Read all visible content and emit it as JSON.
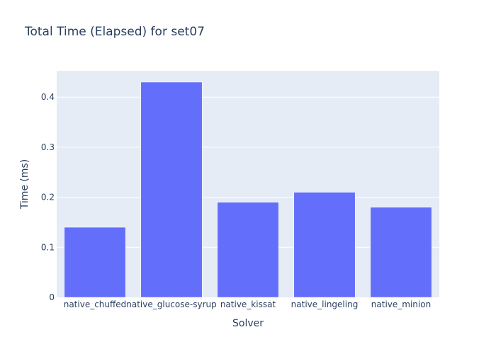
{
  "chart_data": {
    "type": "bar",
    "title": "Total Time (Elapsed) for set07",
    "xlabel": "Solver",
    "ylabel": "Time (ms)",
    "categories": [
      "native_chuffed",
      "native_glucose-syrup",
      "native_kissat",
      "native_lingeling",
      "native_minion"
    ],
    "values": [
      0.14,
      0.43,
      0.19,
      0.21,
      0.18
    ],
    "ylim": [
      0,
      0.4526
    ],
    "yticks": [
      0,
      0.1,
      0.2,
      0.3,
      0.4
    ],
    "ytick_labels": [
      "0",
      "0.1",
      "0.2",
      "0.3",
      "0.4"
    ],
    "grid": true,
    "colors": {
      "bar": "#636efa",
      "plot_bg": "#e5ecf6",
      "grid": "#ffffff",
      "text": "#2a3f5f",
      "page_bg": "#ffffff"
    }
  }
}
